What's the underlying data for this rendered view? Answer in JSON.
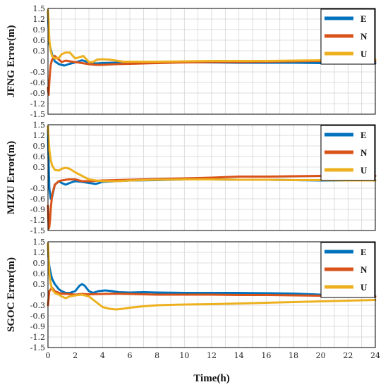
{
  "colors": {
    "E": "#0072BD",
    "N": "#D95319",
    "U": "#EDB120",
    "grid": "#d4d4d4"
  },
  "chart_data": {
    "type": "line",
    "xlabel": "Time(h)",
    "xlim": [
      0,
      24
    ],
    "xticks": [
      0,
      2,
      4,
      6,
      8,
      10,
      12,
      14,
      16,
      18,
      20,
      22,
      24
    ],
    "ylim": [
      -1.5,
      1.5
    ],
    "yticks": [
      1.5,
      1.2,
      0.9,
      0.6,
      0.3,
      0,
      -0.3,
      -0.6,
      -0.9,
      -1.2,
      -1.5
    ],
    "ytick_labels": [
      "1.5",
      "1.2",
      "0.9",
      "0.6",
      "0.3",
      "0",
      "-0.3",
      "-0.6",
      "-0.9",
      "-1.2",
      "-1.5"
    ],
    "grid": true,
    "legend_position": "top-right",
    "panels": [
      {
        "ylabel": "JFNG Error(m)",
        "series": [
          {
            "name": "E",
            "x": [
              0,
              0.05,
              0.1,
              0.2,
              0.3,
              0.5,
              0.8,
              1.2,
              1.6,
              2.0,
              2.5,
              3.0,
              3.5,
              4,
              5,
              6,
              8,
              10,
              12,
              14,
              16,
              18,
              20,
              22,
              24
            ],
            "y": [
              1.4,
              0.9,
              0.5,
              0.35,
              0.2,
              0.0,
              -0.08,
              -0.12,
              -0.07,
              -0.03,
              0.03,
              -0.03,
              -0.06,
              -0.05,
              -0.04,
              -0.03,
              -0.02,
              -0.02,
              -0.03,
              -0.04,
              -0.04,
              -0.04,
              -0.05,
              -0.06,
              -0.06
            ]
          },
          {
            "name": "N",
            "x": [
              0,
              0.05,
              0.1,
              0.15,
              0.2,
              0.3,
              0.5,
              0.8,
              1.0,
              1.3,
              1.6,
              2.0,
              2.5,
              3.0,
              3.5,
              4,
              5,
              6,
              8,
              10,
              12,
              14,
              16,
              18,
              20,
              22,
              24
            ],
            "y": [
              -0.75,
              -0.95,
              -0.6,
              -0.3,
              -0.1,
              0.05,
              0.15,
              0.05,
              -0.02,
              0.02,
              0.0,
              -0.02,
              -0.05,
              -0.08,
              -0.1,
              -0.1,
              -0.08,
              -0.07,
              -0.05,
              -0.03,
              -0.02,
              -0.02,
              -0.01,
              0.0,
              0.01,
              0.0,
              0.0
            ]
          },
          {
            "name": "U",
            "x": [
              0,
              0.05,
              0.1,
              0.2,
              0.3,
              0.5,
              0.8,
              1.0,
              1.3,
              1.6,
              2.0,
              2.3,
              2.6,
              3.0,
              3.3,
              3.6,
              4.0,
              4.5,
              5.0,
              5.5,
              6,
              8,
              10,
              12,
              14,
              16,
              18,
              20,
              22,
              24
            ],
            "y": [
              1.45,
              1.1,
              0.6,
              0.3,
              0.15,
              0.08,
              0.1,
              0.2,
              0.25,
              0.25,
              0.08,
              0.12,
              0.15,
              -0.02,
              -0.02,
              0.05,
              0.06,
              0.05,
              0.02,
              -0.01,
              -0.01,
              -0.01,
              0.0,
              0.01,
              0.01,
              0.01,
              0.02,
              0.03,
              0.04,
              0.05
            ]
          }
        ]
      },
      {
        "ylabel": "MIZU Error(m)",
        "series": [
          {
            "name": "E",
            "x": [
              0,
              0.05,
              0.1,
              0.2,
              0.3,
              0.5,
              0.8,
              1.0,
              1.3,
              1.6,
              2.0,
              2.5,
              3.0,
              3.5,
              4,
              5,
              6,
              8,
              10,
              12,
              14,
              16,
              18,
              20,
              22,
              24
            ],
            "y": [
              1.35,
              0.4,
              -0.3,
              -0.6,
              -0.55,
              -0.2,
              -0.1,
              -0.15,
              -0.2,
              -0.15,
              -0.1,
              -0.12,
              -0.15,
              -0.18,
              -0.12,
              -0.1,
              -0.08,
              -0.07,
              -0.05,
              -0.05,
              -0.06,
              -0.06,
              -0.07,
              -0.08,
              -0.08,
              -0.08
            ]
          },
          {
            "name": "N",
            "x": [
              0,
              0.05,
              0.1,
              0.15,
              0.2,
              0.3,
              0.5,
              0.8,
              1.0,
              1.5,
              2.0,
              2.5,
              3,
              4,
              5,
              6,
              8,
              10,
              12,
              14,
              16,
              18,
              20,
              22,
              24
            ],
            "y": [
              -0.8,
              -1.45,
              -1.4,
              -1.2,
              -0.9,
              -0.5,
              -0.2,
              -0.1,
              -0.08,
              -0.05,
              -0.05,
              -0.1,
              -0.1,
              -0.08,
              -0.07,
              -0.06,
              -0.04,
              -0.02,
              0.0,
              0.03,
              0.03,
              0.04,
              0.05,
              0.05,
              0.05
            ]
          },
          {
            "name": "U",
            "x": [
              0,
              0.05,
              0.1,
              0.2,
              0.3,
              0.5,
              0.8,
              1.0,
              1.3,
              1.6,
              2.0,
              2.5,
              3.0,
              3.5,
              4,
              5,
              6,
              8,
              10,
              12,
              14,
              16,
              18,
              20,
              22,
              24
            ],
            "y": [
              1.45,
              1.1,
              0.8,
              0.5,
              0.35,
              0.22,
              0.2,
              0.25,
              0.28,
              0.25,
              0.15,
              0.05,
              -0.05,
              -0.08,
              -0.1,
              -0.1,
              -0.08,
              -0.06,
              -0.05,
              -0.05,
              -0.06,
              -0.06,
              -0.07,
              -0.07,
              -0.08,
              -0.08
            ]
          }
        ]
      },
      {
        "ylabel": "SGOC Error(m)",
        "series": [
          {
            "name": "E",
            "x": [
              0,
              0.05,
              0.1,
              0.2,
              0.3,
              0.5,
              0.8,
              1.0,
              1.3,
              1.6,
              2.0,
              2.3,
              2.5,
              2.7,
              3.0,
              3.3,
              3.7,
              4.2,
              4.7,
              5.2,
              6,
              7,
              8,
              10,
              12,
              14,
              16,
              18,
              20,
              22,
              24
            ],
            "y": [
              1.4,
              1.0,
              0.8,
              0.6,
              0.45,
              0.3,
              0.15,
              0.1,
              0.05,
              0.05,
              0.1,
              0.25,
              0.3,
              0.25,
              0.1,
              0.05,
              0.1,
              0.12,
              0.1,
              0.07,
              0.06,
              0.07,
              0.06,
              0.05,
              0.05,
              0.05,
              0.04,
              0.03,
              0.0,
              -0.03,
              -0.05
            ]
          },
          {
            "name": "N",
            "x": [
              0,
              0.05,
              0.1,
              0.2,
              0.3,
              0.5,
              0.8,
              1.0,
              1.5,
              2.0,
              2.5,
              3,
              4,
              5,
              6,
              8,
              10,
              12,
              14,
              16,
              18,
              20,
              22,
              24
            ],
            "y": [
              -0.3,
              -0.1,
              0.1,
              0.15,
              0.2,
              0.1,
              0.05,
              0.03,
              0.02,
              0.0,
              0.02,
              0.01,
              0.02,
              0.03,
              0.02,
              0.0,
              0.0,
              0.0,
              -0.01,
              -0.01,
              -0.02,
              -0.03,
              -0.04,
              -0.05
            ]
          },
          {
            "name": "U",
            "x": [
              0,
              0.05,
              0.1,
              0.2,
              0.3,
              0.5,
              0.8,
              1.0,
              1.3,
              1.6,
              2.0,
              2.5,
              3.0,
              3.5,
              4.0,
              4.5,
              5.0,
              5.5,
              6,
              7,
              8,
              10,
              12,
              14,
              16,
              18,
              20,
              22,
              24
            ],
            "y": [
              1.45,
              1.0,
              0.6,
              0.3,
              0.15,
              0.05,
              0.0,
              -0.05,
              -0.1,
              -0.05,
              -0.02,
              0.0,
              -0.05,
              -0.2,
              -0.35,
              -0.4,
              -0.42,
              -0.4,
              -0.37,
              -0.33,
              -0.3,
              -0.28,
              -0.27,
              -0.25,
              -0.23,
              -0.21,
              -0.19,
              -0.17,
              -0.15
            ]
          }
        ]
      }
    ]
  }
}
